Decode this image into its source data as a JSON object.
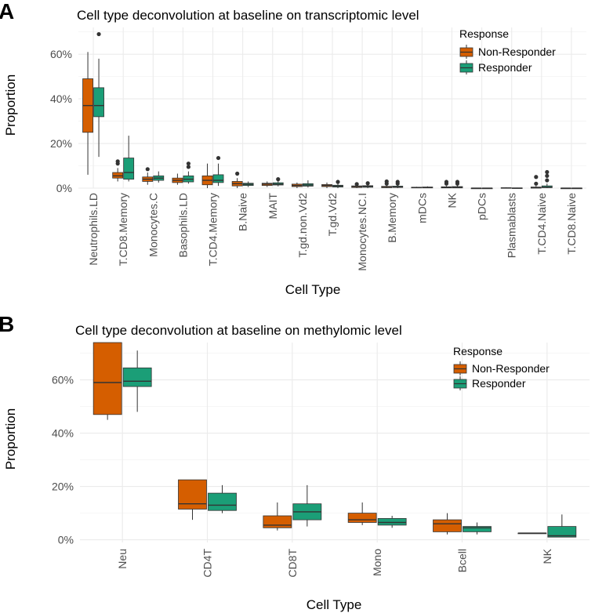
{
  "colors": {
    "Non-Responder": "#D55E00",
    "Responder": "#1B9E77",
    "outline": "#333333"
  },
  "chart_data": [
    {
      "panel": "A",
      "type": "box",
      "title": "Cell type deconvolution at baseline on transcriptomic level",
      "xlabel": "Cell Type",
      "ylabel": "Proportion",
      "ylim": [
        0,
        0.72
      ],
      "yticks": [
        0,
        0.2,
        0.4,
        0.6
      ],
      "ytick_labels": [
        "0%",
        "20%",
        "40%",
        "60%"
      ],
      "grid": true,
      "legend": {
        "title": "Response",
        "position": "top-right",
        "entries": [
          "Non-Responder",
          "Responder"
        ]
      },
      "categories": [
        "Neutrophils.LD",
        "T.CD8.Memory",
        "Monocytes.C",
        "Basophils.LD",
        "T.CD4.Memory",
        "B.Naive",
        "MAIT",
        "T.gd.non.Vd2",
        "T.gd.Vd2",
        "Monocytes.NC.I",
        "B.Memory",
        "mDCs",
        "NK",
        "pDCs",
        "Plasmablasts",
        "T.CD4.Naive",
        "T.CD8.Naive"
      ],
      "series": [
        {
          "name": "Non-Responder",
          "boxes": [
            {
              "min": 0.06,
              "q1": 0.25,
              "median": 0.37,
              "q3": 0.49,
              "max": 0.61,
              "outliers": []
            },
            {
              "min": 0.03,
              "q1": 0.045,
              "median": 0.055,
              "q3": 0.07,
              "max": 0.09,
              "outliers": [
                0.11,
                0.12
              ]
            },
            {
              "min": 0.015,
              "q1": 0.03,
              "median": 0.04,
              "q3": 0.05,
              "max": 0.07,
              "outliers": [
                0.085
              ]
            },
            {
              "min": 0.015,
              "q1": 0.025,
              "median": 0.035,
              "q3": 0.045,
              "max": 0.065,
              "outliers": []
            },
            {
              "min": 0.0,
              "q1": 0.015,
              "median": 0.035,
              "q3": 0.055,
              "max": 0.11,
              "outliers": []
            },
            {
              "min": 0.0,
              "q1": 0.01,
              "median": 0.02,
              "q3": 0.03,
              "max": 0.045,
              "outliers": [
                0.065
              ]
            },
            {
              "min": 0.005,
              "q1": 0.012,
              "median": 0.018,
              "q3": 0.022,
              "max": 0.03,
              "outliers": []
            },
            {
              "min": 0.0,
              "q1": 0.007,
              "median": 0.012,
              "q3": 0.018,
              "max": 0.025,
              "outliers": []
            },
            {
              "min": 0.0,
              "q1": 0.007,
              "median": 0.012,
              "q3": 0.016,
              "max": 0.025,
              "outliers": []
            },
            {
              "min": 0.0,
              "q1": 0.003,
              "median": 0.007,
              "q3": 0.01,
              "max": 0.015,
              "outliers": [
                0.018
              ]
            },
            {
              "min": 0.0,
              "q1": 0.002,
              "median": 0.004,
              "q3": 0.008,
              "max": 0.012,
              "outliers": [
                0.02,
                0.03
              ]
            },
            {
              "min": 0.0,
              "q1": 0.001,
              "median": 0.003,
              "q3": 0.004,
              "max": 0.006,
              "outliers": []
            },
            {
              "min": 0.0,
              "q1": 0.001,
              "median": 0.004,
              "q3": 0.006,
              "max": 0.01,
              "outliers": [
                0.02,
                0.028
              ]
            },
            {
              "min": 0.0,
              "q1": 0.0,
              "median": 0.0,
              "q3": 0.0,
              "max": 0.0,
              "outliers": []
            },
            {
              "min": 0.0,
              "q1": 0.0,
              "median": 0.001,
              "q3": 0.002,
              "max": 0.004,
              "outliers": []
            },
            {
              "min": 0.0,
              "q1": 0.0,
              "median": 0.002,
              "q3": 0.005,
              "max": 0.01,
              "outliers": [
                0.02,
                0.05
              ]
            },
            {
              "min": 0.0,
              "q1": 0.0,
              "median": 0.0,
              "q3": 0.0,
              "max": 0.0,
              "outliers": []
            }
          ]
        },
        {
          "name": "Responder",
          "boxes": [
            {
              "min": 0.14,
              "q1": 0.32,
              "median": 0.37,
              "q3": 0.45,
              "max": 0.58,
              "outliers": [
                0.69
              ]
            },
            {
              "min": 0.03,
              "q1": 0.04,
              "median": 0.07,
              "q3": 0.135,
              "max": 0.235,
              "outliers": []
            },
            {
              "min": 0.025,
              "q1": 0.035,
              "median": 0.045,
              "q3": 0.055,
              "max": 0.075,
              "outliers": []
            },
            {
              "min": 0.02,
              "q1": 0.028,
              "median": 0.04,
              "q3": 0.055,
              "max": 0.075,
              "outliers": [
                0.095,
                0.11
              ]
            },
            {
              "min": 0.01,
              "q1": 0.025,
              "median": 0.035,
              "q3": 0.06,
              "max": 0.11,
              "outliers": [
                0.135
              ]
            },
            {
              "min": 0.005,
              "q1": 0.012,
              "median": 0.017,
              "q3": 0.022,
              "max": 0.03,
              "outliers": []
            },
            {
              "min": 0.008,
              "q1": 0.014,
              "median": 0.018,
              "q3": 0.024,
              "max": 0.032,
              "outliers": [
                0.04
              ]
            },
            {
              "min": 0.003,
              "q1": 0.009,
              "median": 0.014,
              "q3": 0.02,
              "max": 0.035,
              "outliers": []
            },
            {
              "min": 0.0,
              "q1": 0.005,
              "median": 0.009,
              "q3": 0.013,
              "max": 0.02,
              "outliers": [
                0.028
              ]
            },
            {
              "min": 0.0,
              "q1": 0.004,
              "median": 0.008,
              "q3": 0.011,
              "max": 0.015,
              "outliers": [
                0.022
              ]
            },
            {
              "min": 0.0,
              "q1": 0.003,
              "median": 0.005,
              "q3": 0.009,
              "max": 0.015,
              "outliers": [
                0.02,
                0.028
              ]
            },
            {
              "min": 0.0,
              "q1": 0.001,
              "median": 0.003,
              "q3": 0.005,
              "max": 0.008,
              "outliers": []
            },
            {
              "min": 0.0,
              "q1": 0.001,
              "median": 0.004,
              "q3": 0.007,
              "max": 0.012,
              "outliers": [
                0.02,
                0.028
              ]
            },
            {
              "min": 0.0,
              "q1": 0.0,
              "median": 0.0,
              "q3": 0.0,
              "max": 0.0,
              "outliers": []
            },
            {
              "min": 0.0,
              "q1": 0.0,
              "median": 0.0,
              "q3": 0.001,
              "max": 0.002,
              "outliers": []
            },
            {
              "min": 0.0,
              "q1": 0.002,
              "median": 0.004,
              "q3": 0.01,
              "max": 0.02,
              "outliers": [
                0.035,
                0.055,
                0.072
              ]
            },
            {
              "min": 0.0,
              "q1": 0.0,
              "median": 0.0,
              "q3": 0.0,
              "max": 0.0,
              "outliers": []
            }
          ]
        }
      ]
    },
    {
      "panel": "B",
      "type": "box",
      "title": "Cell type deconvolution at baseline on methylomic level",
      "xlabel": "Cell Type",
      "ylabel": "Proportion",
      "ylim": [
        -0.01,
        0.74
      ],
      "yticks": [
        0,
        0.2,
        0.4,
        0.6
      ],
      "ytick_labels": [
        "0%",
        "20%",
        "40%",
        "60%"
      ],
      "grid": true,
      "legend": {
        "title": "Response",
        "position": "top-right",
        "entries": [
          "Non-Responder",
          "Responder"
        ]
      },
      "categories": [
        "Neu",
        "CD4T",
        "CD8T",
        "Mono",
        "Bcell",
        "NK"
      ],
      "series": [
        {
          "name": "Non-Responder",
          "boxes": [
            {
              "min": 0.45,
              "q1": 0.47,
              "median": 0.59,
              "q3": 0.74,
              "max": 0.74,
              "outliers": []
            },
            {
              "min": 0.075,
              "q1": 0.115,
              "median": 0.135,
              "q3": 0.225,
              "max": 0.225,
              "outliers": []
            },
            {
              "min": 0.035,
              "q1": 0.045,
              "median": 0.055,
              "q3": 0.09,
              "max": 0.14,
              "outliers": []
            },
            {
              "min": 0.055,
              "q1": 0.065,
              "median": 0.075,
              "q3": 0.1,
              "max": 0.14,
              "outliers": []
            },
            {
              "min": 0.02,
              "q1": 0.03,
              "median": 0.06,
              "q3": 0.075,
              "max": 0.1,
              "outliers": []
            },
            {
              "min": 0.025,
              "q1": 0.025,
              "median": 0.025,
              "q3": 0.025,
              "max": 0.025,
              "outliers": []
            }
          ]
        },
        {
          "name": "Responder",
          "boxes": [
            {
              "min": 0.48,
              "q1": 0.575,
              "median": 0.595,
              "q3": 0.645,
              "max": 0.71,
              "outliers": []
            },
            {
              "min": 0.1,
              "q1": 0.11,
              "median": 0.13,
              "q3": 0.175,
              "max": 0.205,
              "outliers": []
            },
            {
              "min": 0.05,
              "q1": 0.075,
              "median": 0.105,
              "q3": 0.135,
              "max": 0.205,
              "outliers": []
            },
            {
              "min": 0.045,
              "q1": 0.055,
              "median": 0.065,
              "q3": 0.08,
              "max": 0.09,
              "outliers": []
            },
            {
              "min": 0.02,
              "q1": 0.03,
              "median": 0.045,
              "q3": 0.05,
              "max": 0.065,
              "outliers": []
            },
            {
              "min": 0.01,
              "q1": 0.01,
              "median": 0.015,
              "q3": 0.05,
              "max": 0.095,
              "outliers": []
            }
          ]
        }
      ]
    }
  ]
}
